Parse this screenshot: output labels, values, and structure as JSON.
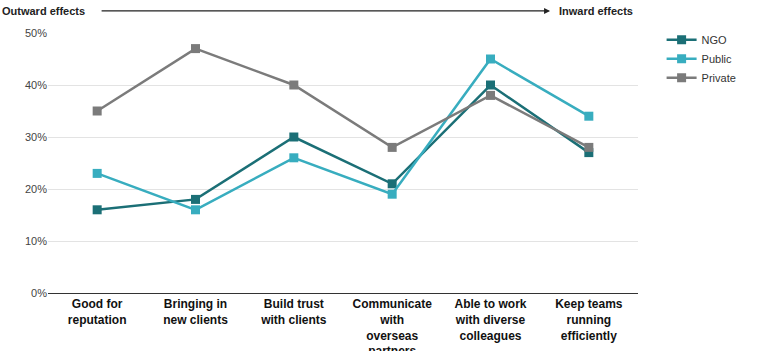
{
  "chart_data": {
    "type": "line",
    "annotations": [
      "Outward effects",
      "Inward effects"
    ],
    "categories": [
      "Good for reputation",
      "Bringing in new clients",
      "Build trust with clients",
      "Communicate with overseas partners",
      "Able to work with diverse colleagues",
      "Keep teams running efficiently"
    ],
    "series": [
      {
        "name": "NGO",
        "color": "#1b6f76",
        "values": [
          16,
          18,
          30,
          21,
          40,
          27
        ]
      },
      {
        "name": "Public",
        "color": "#38adbf",
        "values": [
          23,
          16,
          26,
          19,
          45,
          34
        ]
      },
      {
        "name": "Private",
        "color": "#7b7b7b",
        "values": [
          35,
          47,
          40,
          28,
          38,
          28
        ]
      }
    ],
    "ylim": [
      0,
      50
    ],
    "yticks": [
      {
        "value": 0,
        "label": "0%"
      },
      {
        "value": 10,
        "label": "10%"
      },
      {
        "value": 20,
        "label": "20%"
      },
      {
        "value": 30,
        "label": "30%"
      },
      {
        "value": 40,
        "label": "40%"
      },
      {
        "value": 50,
        "label": "50%"
      }
    ],
    "grid": true,
    "legend": "right",
    "marker": "square"
  }
}
